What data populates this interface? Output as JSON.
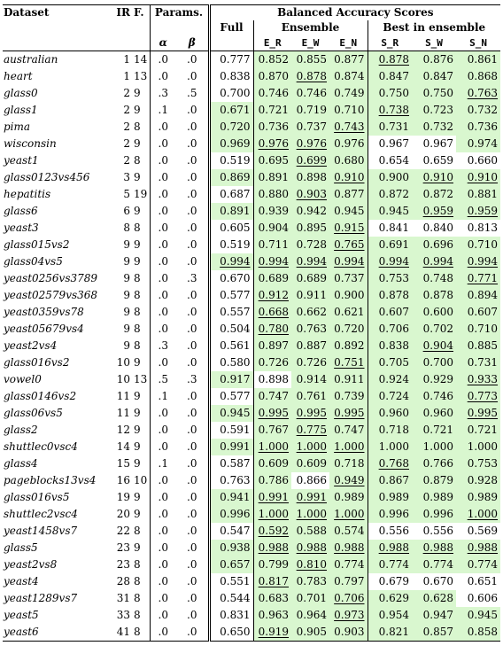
{
  "header": {
    "dataset": "Dataset",
    "ir": "IR",
    "f": "F.",
    "params": "Params.",
    "alpha": "α",
    "beta": "β",
    "balanced": "Balanced Accuracy Scores",
    "full": "Full",
    "ensemble": "Ensemble",
    "best": "Best in ensemble",
    "er": "E_R",
    "ew": "E_W",
    "en": "E_N",
    "sr": "S_R",
    "sw": "S_W",
    "sn": "S_N"
  },
  "highlight_color": "#d9f7cf",
  "rows": [
    {
      "name": "australian",
      "ir": "1",
      "f": "14",
      "a": ".0",
      "b": ".0",
      "full": "0.777",
      "er": "0.852",
      "ew": "0.855",
      "en": "0.877",
      "sr": "0.878",
      "sw": "0.876",
      "sn": "0.861",
      "hl": [
        0,
        1,
        1,
        1,
        1,
        1,
        1
      ],
      "ul": [
        0,
        0,
        0,
        0,
        1,
        0,
        0
      ]
    },
    {
      "name": "heart",
      "ir": "1",
      "f": "13",
      "a": ".0",
      "b": ".0",
      "full": "0.838",
      "er": "0.870",
      "ew": "0.878",
      "en": "0.874",
      "sr": "0.847",
      "sw": "0.847",
      "sn": "0.868",
      "hl": [
        0,
        1,
        1,
        1,
        1,
        1,
        1
      ],
      "ul": [
        0,
        0,
        1,
        0,
        0,
        0,
        0
      ]
    },
    {
      "name": "glass0",
      "ir": "2",
      "f": "9",
      "a": ".3",
      "b": ".5",
      "full": "0.700",
      "er": "0.746",
      "ew": "0.746",
      "en": "0.749",
      "sr": "0.750",
      "sw": "0.750",
      "sn": "0.763",
      "hl": [
        0,
        1,
        1,
        1,
        1,
        1,
        1
      ],
      "ul": [
        0,
        0,
        0,
        0,
        0,
        0,
        1
      ]
    },
    {
      "name": "glass1",
      "ir": "2",
      "f": "9",
      "a": ".1",
      "b": ".0",
      "full": "0.671",
      "er": "0.721",
      "ew": "0.719",
      "en": "0.710",
      "sr": "0.738",
      "sw": "0.723",
      "sn": "0.732",
      "hl": [
        1,
        1,
        1,
        1,
        1,
        1,
        1
      ],
      "ul": [
        0,
        0,
        0,
        0,
        1,
        0,
        0
      ]
    },
    {
      "name": "pima",
      "ir": "2",
      "f": "8",
      "a": ".0",
      "b": ".0",
      "full": "0.720",
      "er": "0.736",
      "ew": "0.737",
      "en": "0.743",
      "sr": "0.731",
      "sw": "0.732",
      "sn": "0.736",
      "hl": [
        1,
        1,
        1,
        1,
        1,
        1,
        1
      ],
      "ul": [
        0,
        0,
        0,
        1,
        0,
        0,
        0
      ]
    },
    {
      "name": "wisconsin",
      "ir": "2",
      "f": "9",
      "a": ".0",
      "b": ".0",
      "full": "0.969",
      "er": "0.976",
      "ew": "0.976",
      "en": "0.976",
      "sr": "0.967",
      "sw": "0.967",
      "sn": "0.974",
      "hl": [
        1,
        1,
        1,
        1,
        0,
        0,
        1
      ],
      "ul": [
        0,
        1,
        1,
        0,
        0,
        0,
        0
      ]
    },
    {
      "name": "yeast1",
      "ir": "2",
      "f": "8",
      "a": ".0",
      "b": ".0",
      "full": "0.519",
      "er": "0.695",
      "ew": "0.699",
      "en": "0.680",
      "sr": "0.654",
      "sw": "0.659",
      "sn": "0.660",
      "hl": [
        0,
        1,
        1,
        1,
        0,
        0,
        0
      ],
      "ul": [
        0,
        0,
        1,
        0,
        0,
        0,
        0
      ]
    },
    {
      "name": "glass0123vs456",
      "ir": "3",
      "f": "9",
      "a": ".0",
      "b": ".0",
      "full": "0.869",
      "er": "0.891",
      "ew": "0.898",
      "en": "0.910",
      "sr": "0.900",
      "sw": "0.910",
      "sn": "0.910",
      "hl": [
        1,
        1,
        1,
        1,
        1,
        1,
        1
      ],
      "ul": [
        0,
        0,
        0,
        1,
        0,
        1,
        1
      ]
    },
    {
      "name": "hepatitis",
      "ir": "5",
      "f": "19",
      "a": ".0",
      "b": ".0",
      "full": "0.687",
      "er": "0.880",
      "ew": "0.903",
      "en": "0.877",
      "sr": "0.872",
      "sw": "0.872",
      "sn": "0.881",
      "hl": [
        0,
        1,
        1,
        1,
        1,
        1,
        1
      ],
      "ul": [
        0,
        0,
        1,
        0,
        0,
        0,
        0
      ]
    },
    {
      "name": "glass6",
      "ir": "6",
      "f": "9",
      "a": ".0",
      "b": ".0",
      "full": "0.891",
      "er": "0.939",
      "ew": "0.942",
      "en": "0.945",
      "sr": "0.945",
      "sw": "0.959",
      "sn": "0.959",
      "hl": [
        1,
        1,
        1,
        1,
        1,
        1,
        1
      ],
      "ul": [
        0,
        0,
        0,
        0,
        0,
        1,
        1
      ]
    },
    {
      "name": "yeast3",
      "ir": "8",
      "f": "8",
      "a": ".0",
      "b": ".0",
      "full": "0.605",
      "er": "0.904",
      "ew": "0.895",
      "en": "0.915",
      "sr": "0.841",
      "sw": "0.840",
      "sn": "0.813",
      "hl": [
        0,
        1,
        1,
        1,
        0,
        0,
        0
      ],
      "ul": [
        0,
        0,
        0,
        1,
        0,
        0,
        0
      ]
    },
    {
      "name": "glass015vs2",
      "ir": "9",
      "f": "9",
      "a": ".0",
      "b": ".0",
      "full": "0.519",
      "er": "0.711",
      "ew": "0.728",
      "en": "0.765",
      "sr": "0.691",
      "sw": "0.696",
      "sn": "0.710",
      "hl": [
        0,
        1,
        1,
        1,
        1,
        1,
        1
      ],
      "ul": [
        0,
        0,
        0,
        1,
        0,
        0,
        0
      ]
    },
    {
      "name": "glass04vs5",
      "ir": "9",
      "f": "9",
      "a": ".0",
      "b": ".0",
      "full": "0.994",
      "er": "0.994",
      "ew": "0.994",
      "en": "0.994",
      "sr": "0.994",
      "sw": "0.994",
      "sn": "0.994",
      "hl": [
        1,
        1,
        1,
        1,
        1,
        1,
        1
      ],
      "ul": [
        1,
        1,
        1,
        1,
        1,
        1,
        1
      ]
    },
    {
      "name": "yeast0256vs3789",
      "ir": "9",
      "f": "8",
      "a": ".0",
      "b": ".3",
      "full": "0.670",
      "er": "0.689",
      "ew": "0.689",
      "en": "0.737",
      "sr": "0.753",
      "sw": "0.748",
      "sn": "0.771",
      "hl": [
        0,
        1,
        1,
        1,
        1,
        1,
        1
      ],
      "ul": [
        0,
        0,
        0,
        0,
        0,
        0,
        1
      ]
    },
    {
      "name": "yeast02579vs368",
      "ir": "9",
      "f": "8",
      "a": ".0",
      "b": ".0",
      "full": "0.577",
      "er": "0.912",
      "ew": "0.911",
      "en": "0.900",
      "sr": "0.878",
      "sw": "0.878",
      "sn": "0.894",
      "hl": [
        0,
        1,
        1,
        1,
        1,
        1,
        1
      ],
      "ul": [
        0,
        1,
        0,
        0,
        0,
        0,
        0
      ]
    },
    {
      "name": "yeast0359vs78",
      "ir": "9",
      "f": "8",
      "a": ".0",
      "b": ".0",
      "full": "0.557",
      "er": "0.668",
      "ew": "0.662",
      "en": "0.621",
      "sr": "0.607",
      "sw": "0.600",
      "sn": "0.607",
      "hl": [
        0,
        1,
        1,
        1,
        1,
        1,
        1
      ],
      "ul": [
        0,
        1,
        0,
        0,
        0,
        0,
        0
      ]
    },
    {
      "name": "yeast05679vs4",
      "ir": "9",
      "f": "8",
      "a": ".0",
      "b": ".0",
      "full": "0.504",
      "er": "0.780",
      "ew": "0.763",
      "en": "0.720",
      "sr": "0.706",
      "sw": "0.702",
      "sn": "0.710",
      "hl": [
        0,
        1,
        1,
        1,
        1,
        1,
        1
      ],
      "ul": [
        0,
        1,
        0,
        0,
        0,
        0,
        0
      ]
    },
    {
      "name": "yeast2vs4",
      "ir": "9",
      "f": "8",
      "a": ".3",
      "b": ".0",
      "full": "0.561",
      "er": "0.897",
      "ew": "0.887",
      "en": "0.892",
      "sr": "0.838",
      "sw": "0.904",
      "sn": "0.885",
      "hl": [
        0,
        1,
        1,
        1,
        1,
        1,
        1
      ],
      "ul": [
        0,
        0,
        0,
        0,
        0,
        1,
        0
      ]
    },
    {
      "name": "glass016vs2",
      "ir": "10",
      "f": "9",
      "a": ".0",
      "b": ".0",
      "full": "0.580",
      "er": "0.726",
      "ew": "0.726",
      "en": "0.751",
      "sr": "0.705",
      "sw": "0.700",
      "sn": "0.731",
      "hl": [
        0,
        1,
        1,
        1,
        1,
        1,
        1
      ],
      "ul": [
        0,
        0,
        0,
        1,
        0,
        0,
        0
      ]
    },
    {
      "name": "vowel0",
      "ir": "10",
      "f": "13",
      "a": ".5",
      "b": ".3",
      "full": "0.917",
      "er": "0.898",
      "ew": "0.914",
      "en": "0.911",
      "sr": "0.924",
      "sw": "0.929",
      "sn": "0.933",
      "hl": [
        1,
        0,
        1,
        1,
        1,
        1,
        1
      ],
      "ul": [
        0,
        0,
        0,
        0,
        0,
        0,
        1
      ]
    },
    {
      "name": "glass0146vs2",
      "ir": "11",
      "f": "9",
      "a": ".1",
      "b": ".0",
      "full": "0.577",
      "er": "0.747",
      "ew": "0.761",
      "en": "0.739",
      "sr": "0.724",
      "sw": "0.746",
      "sn": "0.773",
      "hl": [
        0,
        1,
        1,
        1,
        1,
        1,
        1
      ],
      "ul": [
        0,
        0,
        0,
        0,
        0,
        0,
        1
      ]
    },
    {
      "name": "glass06vs5",
      "ir": "11",
      "f": "9",
      "a": ".0",
      "b": ".0",
      "full": "0.945",
      "er": "0.995",
      "ew": "0.995",
      "en": "0.995",
      "sr": "0.960",
      "sw": "0.960",
      "sn": "0.995",
      "hl": [
        1,
        1,
        1,
        1,
        1,
        1,
        1
      ],
      "ul": [
        0,
        1,
        1,
        1,
        0,
        0,
        1
      ]
    },
    {
      "name": "glass2",
      "ir": "12",
      "f": "9",
      "a": ".0",
      "b": ".0",
      "full": "0.591",
      "er": "0.767",
      "ew": "0.775",
      "en": "0.747",
      "sr": "0.718",
      "sw": "0.721",
      "sn": "0.721",
      "hl": [
        0,
        1,
        1,
        1,
        1,
        1,
        1
      ],
      "ul": [
        0,
        0,
        1,
        0,
        0,
        0,
        0
      ]
    },
    {
      "name": "shuttlec0vsc4",
      "ir": "14",
      "f": "9",
      "a": ".0",
      "b": ".0",
      "full": "0.991",
      "er": "1.000",
      "ew": "1.000",
      "en": "1.000",
      "sr": "1.000",
      "sw": "1.000",
      "sn": "1.000",
      "hl": [
        1,
        1,
        1,
        1,
        1,
        1,
        1
      ],
      "ul": [
        0,
        1,
        1,
        1,
        0,
        0,
        0
      ]
    },
    {
      "name": "glass4",
      "ir": "15",
      "f": "9",
      "a": ".1",
      "b": ".0",
      "full": "0.587",
      "er": "0.609",
      "ew": "0.609",
      "en": "0.718",
      "sr": "0.768",
      "sw": "0.766",
      "sn": "0.753",
      "hl": [
        0,
        1,
        1,
        1,
        1,
        1,
        1
      ],
      "ul": [
        0,
        0,
        0,
        0,
        1,
        0,
        0
      ]
    },
    {
      "name": "pageblocks13vs4",
      "ir": "16",
      "f": "10",
      "a": ".0",
      "b": ".0",
      "full": "0.763",
      "er": "0.786",
      "ew": "0.866",
      "en": "0.949",
      "sr": "0.867",
      "sw": "0.879",
      "sn": "0.928",
      "hl": [
        0,
        1,
        0,
        1,
        1,
        1,
        1
      ],
      "ul": [
        0,
        0,
        0,
        1,
        0,
        0,
        0
      ]
    },
    {
      "name": "glass016vs5",
      "ir": "19",
      "f": "9",
      "a": ".0",
      "b": ".0",
      "full": "0.941",
      "er": "0.991",
      "ew": "0.991",
      "en": "0.989",
      "sr": "0.989",
      "sw": "0.989",
      "sn": "0.989",
      "hl": [
        1,
        1,
        1,
        1,
        1,
        1,
        1
      ],
      "ul": [
        0,
        1,
        1,
        0,
        0,
        0,
        0
      ]
    },
    {
      "name": "shuttlec2vsc4",
      "ir": "20",
      "f": "9",
      "a": ".0",
      "b": ".0",
      "full": "0.996",
      "er": "1.000",
      "ew": "1.000",
      "en": "1.000",
      "sr": "0.996",
      "sw": "0.996",
      "sn": "1.000",
      "hl": [
        1,
        1,
        1,
        1,
        1,
        1,
        1
      ],
      "ul": [
        0,
        1,
        1,
        1,
        0,
        0,
        1
      ]
    },
    {
      "name": "yeast1458vs7",
      "ir": "22",
      "f": "8",
      "a": ".0",
      "b": ".0",
      "full": "0.547",
      "er": "0.592",
      "ew": "0.588",
      "en": "0.574",
      "sr": "0.556",
      "sw": "0.556",
      "sn": "0.569",
      "hl": [
        0,
        1,
        1,
        1,
        0,
        0,
        0
      ],
      "ul": [
        0,
        1,
        0,
        0,
        0,
        0,
        0
      ]
    },
    {
      "name": "glass5",
      "ir": "23",
      "f": "9",
      "a": ".0",
      "b": ".0",
      "full": "0.938",
      "er": "0.988",
      "ew": "0.988",
      "en": "0.988",
      "sr": "0.988",
      "sw": "0.988",
      "sn": "0.988",
      "hl": [
        1,
        1,
        1,
        1,
        1,
        1,
        1
      ],
      "ul": [
        0,
        1,
        1,
        1,
        1,
        1,
        1
      ]
    },
    {
      "name": "yeast2vs8",
      "ir": "23",
      "f": "8",
      "a": ".0",
      "b": ".0",
      "full": "0.657",
      "er": "0.799",
      "ew": "0.810",
      "en": "0.774",
      "sr": "0.774",
      "sw": "0.774",
      "sn": "0.774",
      "hl": [
        1,
        1,
        1,
        1,
        1,
        1,
        1
      ],
      "ul": [
        0,
        0,
        1,
        0,
        0,
        0,
        0
      ]
    },
    {
      "name": "yeast4",
      "ir": "28",
      "f": "8",
      "a": ".0",
      "b": ".0",
      "full": "0.551",
      "er": "0.817",
      "ew": "0.783",
      "en": "0.797",
      "sr": "0.679",
      "sw": "0.670",
      "sn": "0.651",
      "hl": [
        0,
        1,
        1,
        1,
        0,
        0,
        0
      ],
      "ul": [
        0,
        1,
        0,
        0,
        0,
        0,
        0
      ]
    },
    {
      "name": "yeast1289vs7",
      "ir": "31",
      "f": "8",
      "a": ".0",
      "b": ".0",
      "full": "0.544",
      "er": "0.683",
      "ew": "0.701",
      "en": "0.706",
      "sr": "0.629",
      "sw": "0.628",
      "sn": "0.606",
      "hl": [
        0,
        1,
        1,
        1,
        1,
        1,
        0
      ],
      "ul": [
        0,
        0,
        0,
        1,
        0,
        0,
        0
      ]
    },
    {
      "name": "yeast5",
      "ir": "33",
      "f": "8",
      "a": ".0",
      "b": ".0",
      "full": "0.831",
      "er": "0.963",
      "ew": "0.964",
      "en": "0.973",
      "sr": "0.954",
      "sw": "0.947",
      "sn": "0.945",
      "hl": [
        0,
        1,
        1,
        1,
        1,
        1,
        1
      ],
      "ul": [
        0,
        0,
        0,
        1,
        0,
        0,
        0
      ]
    },
    {
      "name": "yeast6",
      "ir": "41",
      "f": "8",
      "a": ".0",
      "b": ".0",
      "full": "0.650",
      "er": "0.919",
      "ew": "0.905",
      "en": "0.903",
      "sr": "0.821",
      "sw": "0.857",
      "sn": "0.858",
      "hl": [
        0,
        1,
        1,
        1,
        1,
        1,
        1
      ],
      "ul": [
        0,
        1,
        0,
        0,
        0,
        0,
        0
      ]
    }
  ]
}
